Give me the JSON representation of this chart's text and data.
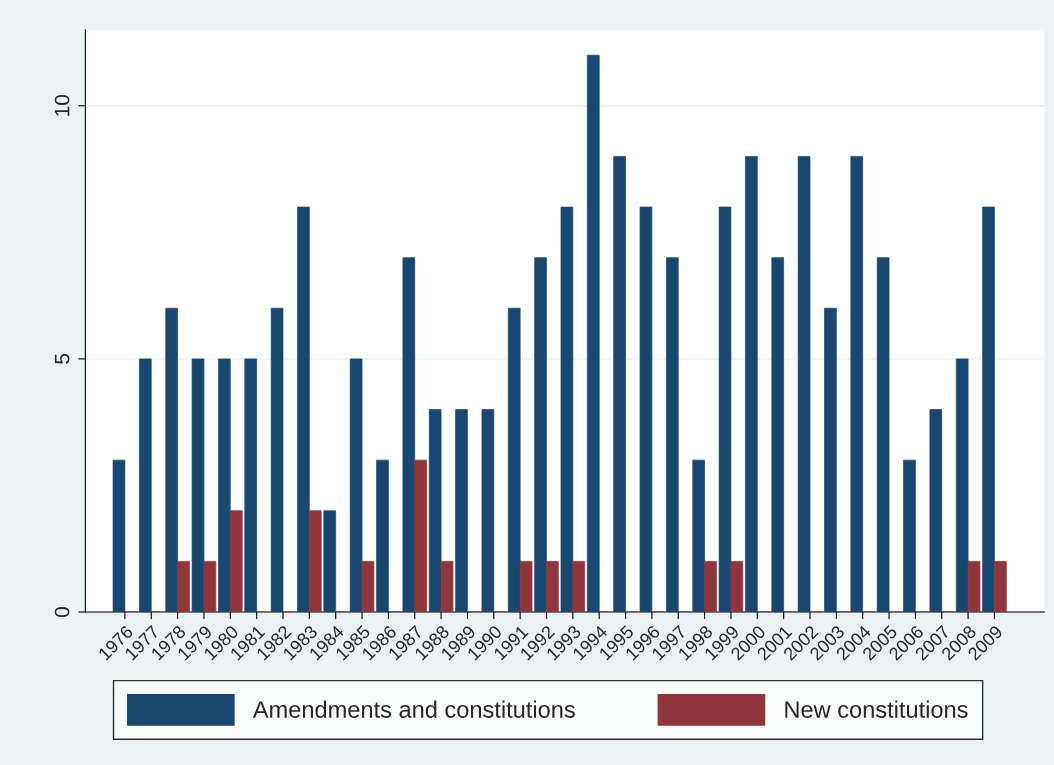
{
  "chart_data": {
    "type": "bar",
    "categories": [
      "1976",
      "1977",
      "1978",
      "1979",
      "1980",
      "1981",
      "1982",
      "1983",
      "1984",
      "1985",
      "1986",
      "1987",
      "1988",
      "1989",
      "1990",
      "1991",
      "1992",
      "1993",
      "1994",
      "1995",
      "1996",
      "1997",
      "1998",
      "1999",
      "2000",
      "2001",
      "2002",
      "2003",
      "2004",
      "2005",
      "2006",
      "2007",
      "2008",
      "2009"
    ],
    "series": [
      {
        "name": "Amendments and constitutions",
        "color": "#1a476f",
        "values": [
          3,
          5,
          6,
          5,
          5,
          5,
          6,
          8,
          2,
          5,
          3,
          7,
          4,
          4,
          4,
          6,
          7,
          8,
          11,
          9,
          8,
          7,
          3,
          8,
          9,
          7,
          9,
          6,
          9,
          7,
          3,
          4,
          5,
          8
        ]
      },
      {
        "name": "New constitutions",
        "color": "#90353b",
        "values": [
          0,
          0,
          1,
          1,
          2,
          0,
          0,
          2,
          0,
          1,
          0,
          3,
          1,
          0,
          0,
          1,
          1,
          1,
          0,
          0,
          0,
          0,
          1,
          1,
          0,
          0,
          0,
          0,
          0,
          0,
          0,
          0,
          1,
          1
        ]
      }
    ],
    "ylim": [
      0,
      11.5
    ],
    "yticks": [
      0,
      5,
      10
    ],
    "grid": "y",
    "legend": "bottom"
  }
}
